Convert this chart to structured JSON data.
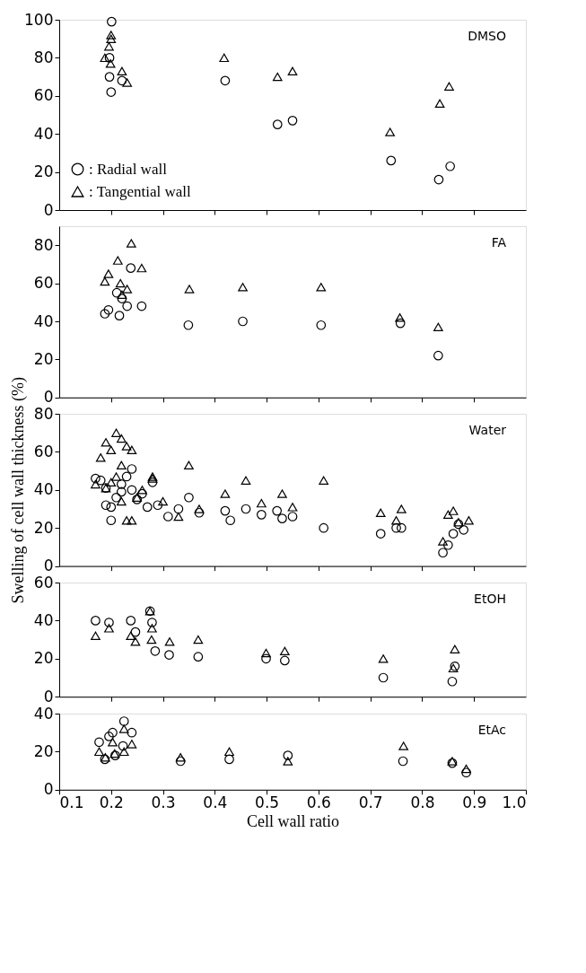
{
  "chart_data": [
    {
      "type": "scatter",
      "annotations": [
        "DMSO"
      ],
      "xlim": [
        0.1,
        1.0
      ],
      "xticks": [
        0.2,
        0.3,
        0.4,
        0.5,
        0.6,
        0.7,
        0.8,
        0.9
      ],
      "ylim": [
        0,
        100
      ],
      "yticks": [
        0,
        20,
        40,
        60,
        80,
        100
      ],
      "tick_labels": "y",
      "legend": "bottom left",
      "series": [
        {
          "name": ": Radial wall",
          "color": "#000000",
          "marker": "circle",
          "x": [
            0.201,
            0.197,
            0.197,
            0.2,
            0.221,
            0.42,
            0.521,
            0.55,
            0.74,
            0.832,
            0.854
          ],
          "values": [
            99,
            80,
            70,
            62,
            68,
            68,
            45,
            47,
            26,
            16,
            23
          ]
        },
        {
          "name": ": Tangential wall",
          "color": "#000000",
          "marker": "triangle",
          "x": [
            0.2,
            0.2,
            0.196,
            0.188,
            0.199,
            0.221,
            0.231,
            0.418,
            0.521,
            0.55,
            0.738,
            0.834,
            0.852
          ],
          "values": [
            92,
            90,
            86,
            80,
            77,
            73,
            67,
            80,
            70,
            73,
            41,
            56,
            65
          ]
        }
      ]
    },
    {
      "type": "scatter",
      "annotations": [
        "FA"
      ],
      "xlim": [
        0.1,
        1.0
      ],
      "xticks": [
        0.2,
        0.3,
        0.4,
        0.5,
        0.6,
        0.7,
        0.8,
        0.9
      ],
      "ylim": [
        0,
        90
      ],
      "yticks": [
        0,
        20,
        40,
        60,
        80
      ],
      "tick_labels": "y",
      "series": [
        {
          "color": "#000000",
          "marker": "circle",
          "x": [
            0.238,
            0.211,
            0.221,
            0.195,
            0.188,
            0.216,
            0.231,
            0.259,
            0.349,
            0.454,
            0.605,
            0.758,
            0.831
          ],
          "values": [
            68,
            55,
            52,
            46,
            44,
            43,
            48,
            48,
            38,
            40,
            38,
            39,
            22
          ]
        },
        {
          "color": "#000000",
          "marker": "triangle",
          "x": [
            0.239,
            0.213,
            0.259,
            0.195,
            0.188,
            0.218,
            0.231,
            0.221,
            0.351,
            0.454,
            0.605,
            0.757,
            0.831
          ],
          "values": [
            81,
            72,
            68,
            65,
            61,
            60,
            57,
            54,
            57,
            58,
            58,
            42,
            37
          ]
        }
      ]
    },
    {
      "type": "scatter",
      "annotations": [
        "Water"
      ],
      "ylabel": "Swelling of cell wall thickness (%)",
      "xlim": [
        0.1,
        1.0
      ],
      "xticks": [
        0.2,
        0.3,
        0.4,
        0.5,
        0.6,
        0.7,
        0.8,
        0.9
      ],
      "ylim": [
        0,
        80
      ],
      "yticks": [
        0,
        20,
        40,
        60,
        80
      ],
      "tick_labels": "y",
      "series": [
        {
          "color": "#000000",
          "marker": "circle",
          "x": [
            0.17,
            0.18,
            0.19,
            0.19,
            0.2,
            0.2,
            0.21,
            0.22,
            0.22,
            0.23,
            0.24,
            0.24,
            0.25,
            0.26,
            0.27,
            0.28,
            0.29,
            0.31,
            0.33,
            0.35,
            0.37,
            0.42,
            0.43,
            0.46,
            0.49,
            0.52,
            0.53,
            0.55,
            0.61,
            0.72,
            0.75,
            0.76,
            0.84,
            0.85,
            0.86,
            0.87,
            0.88
          ],
          "values": [
            46,
            45,
            41,
            32,
            24,
            31,
            36,
            43,
            39,
            47,
            51,
            40,
            35,
            38,
            31,
            44,
            32,
            26,
            30,
            36,
            28,
            29,
            24,
            30,
            27,
            29,
            25,
            26,
            20,
            17,
            20,
            20,
            7,
            11,
            17,
            22,
            19
          ]
        },
        {
          "color": "#000000",
          "marker": "triangle",
          "x": [
            0.18,
            0.19,
            0.2,
            0.21,
            0.22,
            0.23,
            0.24,
            0.22,
            0.21,
            0.17,
            0.19,
            0.2,
            0.22,
            0.23,
            0.24,
            0.25,
            0.26,
            0.28,
            0.28,
            0.3,
            0.33,
            0.35,
            0.37,
            0.42,
            0.46,
            0.49,
            0.53,
            0.55,
            0.61,
            0.72,
            0.75,
            0.76,
            0.84,
            0.85,
            0.86,
            0.87,
            0.89
          ],
          "values": [
            57,
            65,
            61,
            70,
            67,
            63,
            61,
            53,
            47,
            43,
            41,
            44,
            34,
            24,
            24,
            36,
            40,
            47,
            46,
            34,
            26,
            53,
            30,
            38,
            45,
            33,
            38,
            31,
            45,
            28,
            24,
            30,
            13,
            27,
            29,
            23,
            24
          ]
        }
      ]
    },
    {
      "type": "scatter",
      "annotations": [
        "EtOH"
      ],
      "xlim": [
        0.1,
        1.0
      ],
      "xticks": [
        0.2,
        0.3,
        0.4,
        0.5,
        0.6,
        0.7,
        0.8,
        0.9
      ],
      "ylim": [
        0,
        60
      ],
      "yticks": [
        0,
        20,
        40,
        60
      ],
      "tick_labels": "y",
      "series": [
        {
          "color": "#000000",
          "marker": "circle",
          "x": [
            0.17,
            0.196,
            0.238,
            0.275,
            0.279,
            0.247,
            0.285,
            0.312,
            0.368,
            0.499,
            0.535,
            0.725,
            0.858,
            0.863
          ],
          "values": [
            40,
            39,
            40,
            45,
            39,
            34,
            24,
            22,
            21,
            20,
            19,
            10,
            8,
            16
          ]
        },
        {
          "color": "#000000",
          "marker": "triangle",
          "x": [
            0.17,
            0.196,
            0.238,
            0.247,
            0.275,
            0.279,
            0.278,
            0.313,
            0.368,
            0.499,
            0.535,
            0.725,
            0.863,
            0.86
          ],
          "values": [
            32,
            36,
            32,
            29,
            45,
            36,
            30,
            29,
            30,
            23,
            24,
            20,
            25,
            15
          ]
        }
      ]
    },
    {
      "type": "scatter",
      "annotations": [
        "EtAc"
      ],
      "xlabel": "Cell wall ratio",
      "xlim": [
        0.1,
        1.0
      ],
      "xticks": [
        0.1,
        0.2,
        0.3,
        0.4,
        0.5,
        0.6,
        0.7,
        0.8,
        0.9,
        {
          "value": 1.0,
          "label": "1.0"
        }
      ],
      "ylim": [
        0,
        40
      ],
      "yticks": [
        0,
        20,
        40
      ],
      "series": [
        {
          "color": "#000000",
          "marker": "circle",
          "x": [
            0.177,
            0.188,
            0.196,
            0.203,
            0.208,
            0.225,
            0.223,
            0.24,
            0.334,
            0.428,
            0.541,
            0.763,
            0.858,
            0.885
          ],
          "values": [
            25,
            16,
            28,
            30,
            18,
            36,
            23,
            30,
            15,
            16,
            18,
            15,
            14,
            9
          ]
        },
        {
          "color": "#000000",
          "marker": "triangle",
          "x": [
            0.177,
            0.189,
            0.203,
            0.207,
            0.225,
            0.225,
            0.24,
            0.334,
            0.428,
            0.541,
            0.764,
            0.858,
            0.885
          ],
          "values": [
            20,
            17,
            25,
            19,
            32,
            20,
            24,
            17,
            20,
            15,
            23,
            15,
            11
          ]
        }
      ]
    }
  ]
}
